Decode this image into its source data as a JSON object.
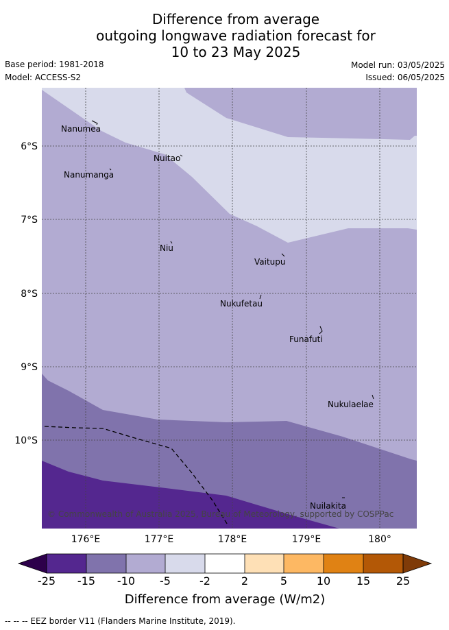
{
  "title": {
    "line1": "Difference from average",
    "line2": "outgoing longwave radiation forecast for",
    "line3": "10 to 23 May 2025"
  },
  "meta": {
    "base_period": "Base period: 1981-2018",
    "model": "Model: ACCESS-S2",
    "model_run": "Model run: 03/05/2025",
    "issued": "Issued: 06/05/2025"
  },
  "map": {
    "lat_ticks": [
      "6°S",
      "7°S",
      "8°S",
      "9°S",
      "10°S"
    ],
    "lon_ticks": [
      "176°E",
      "177°E",
      "178°E",
      "179°E",
      "180°"
    ],
    "islands": [
      "Nanumea",
      "Nuitao",
      "Nanumanga",
      "Niu",
      "Vaitupu",
      "Nukufetau",
      "Funafuti",
      "Nukulaelae",
      "Nuilakita"
    ],
    "copyright": "© Commonwealth of Australia 2025, Bureau of Meteorology, supported by COSPPac",
    "colors": {
      "minus25_to_minus15": "#54278f",
      "minus15_to_minus10": "#8073ac",
      "minus10_to_minus5": "#b2abd2",
      "minus5_to_minus2": "#d8daeb",
      "minus2_to_2": "#ffffff",
      "2_to_5": "#fee0b6",
      "5_to_10": "#fdb863",
      "10_to_15": "#e08214",
      "15_to_25": "#b35806",
      "above_25": "#7f3b08",
      "below_minus25": "#2d004b"
    }
  },
  "colorbar": {
    "labels": [
      "-25",
      "-15",
      "-10",
      "-5",
      "-2",
      "2",
      "5",
      "10",
      "15",
      "25"
    ],
    "title": "Difference from average (W/m2)"
  },
  "footer": {
    "eez_legend": "-- -- -- EEZ border V11 (Flanders Marine Institute, 2019)."
  }
}
